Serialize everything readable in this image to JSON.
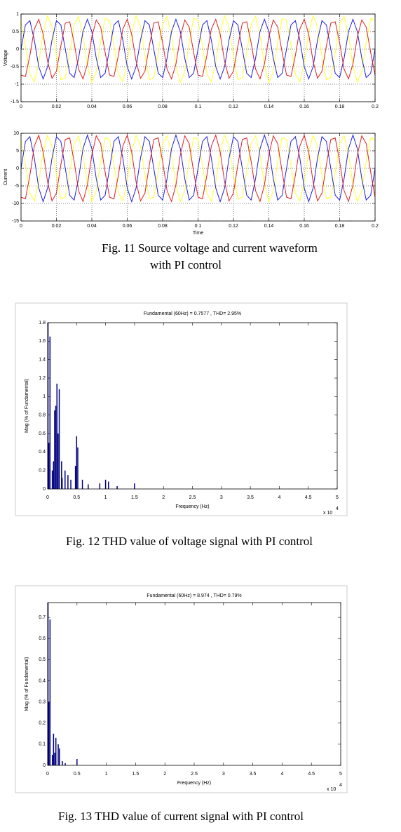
{
  "chart_data": [
    {
      "type": "line",
      "y_label": "Voltage",
      "grid": true,
      "x": [
        0,
        0.0025,
        0.005,
        0.0075,
        0.01,
        0.0125,
        0.015,
        0.0175,
        0.02,
        0.0225,
        0.025,
        0.0275,
        0.03,
        0.0325,
        0.035,
        0.0375,
        0.04,
        0.0425,
        0.045,
        0.0475,
        0.05,
        0.0525,
        0.055,
        0.0575,
        0.06,
        0.0625,
        0.065,
        0.0675,
        0.07,
        0.0725,
        0.075,
        0.0775,
        0.08,
        0.0825,
        0.085,
        0.0875,
        0.09,
        0.0925,
        0.095,
        0.0975,
        0.1,
        0.1025,
        0.105,
        0.1075,
        0.11,
        0.1125,
        0.115,
        0.1175,
        0.12,
        0.1225,
        0.125,
        0.1275,
        0.13,
        0.1325,
        0.135,
        0.1375,
        0.14,
        0.1425,
        0.145,
        0.1475,
        0.15,
        0.1525,
        0.155,
        0.1575,
        0.16,
        0.1625,
        0.165,
        0.1675,
        0.17,
        0.1725,
        0.175,
        0.1775,
        0.18,
        0.1825,
        0.185,
        0.1875,
        0.19,
        0.1925,
        0.195,
        0.1975,
        0.2
      ],
      "xlim": [
        0,
        0.2
      ],
      "xticks": [
        0,
        0.02,
        0.04,
        0.06,
        0.08,
        0.1,
        0.12,
        0.14,
        0.16,
        0.18,
        0.2
      ],
      "ylim": [
        -1.5,
        1
      ],
      "yticks": [
        -1.5,
        -1,
        -0.5,
        0,
        0.5,
        1
      ],
      "series": [
        {
          "color": "#ffff33",
          "values": [
            0.82,
            0.1,
            -0.71,
            -0.93,
            -0.39,
            0.48,
            0.95,
            0.64,
            -0.2,
            -0.87,
            -0.82,
            -0.1,
            0.71,
            0.93,
            0.39,
            -0.48,
            -0.95,
            -0.64,
            0.2,
            0.87,
            0.82,
            0.1,
            -0.71,
            -0.93,
            -0.39,
            0.48,
            0.95,
            0.64,
            -0.2,
            -0.87,
            -0.82,
            -0.1,
            0.71,
            0.93,
            0.39,
            -0.48,
            -0.95,
            -0.64,
            0.2,
            0.87,
            0.82,
            0.1,
            -0.71,
            -0.93,
            -0.39,
            0.48,
            0.95,
            0.64,
            -0.2,
            -0.87,
            -0.82,
            -0.1,
            0.71,
            0.93,
            0.39,
            -0.48,
            -0.95,
            -0.64,
            0.2,
            0.87,
            0.82,
            0.1,
            -0.71,
            -0.93,
            -0.39,
            0.48,
            0.95,
            0.64,
            -0.2,
            -0.87,
            -0.82,
            -0.1,
            0.71,
            0.93,
            0.39,
            -0.48,
            -0.95,
            -0.64,
            0.2,
            0.87,
            0.82
          ]
        },
        {
          "color": "#2020e0",
          "values": [
            0,
            0.69,
            0.81,
            0.26,
            -0.5,
            -0.85,
            -0.5,
            0.26,
            0.81,
            0.69,
            0,
            -0.69,
            -0.81,
            -0.26,
            0.5,
            0.85,
            0.5,
            -0.26,
            -0.81,
            -0.69,
            0,
            0.69,
            0.81,
            0.26,
            -0.5,
            -0.85,
            -0.5,
            0.26,
            0.81,
            0.69,
            0,
            -0.69,
            -0.81,
            -0.26,
            0.5,
            0.85,
            0.5,
            -0.26,
            -0.81,
            -0.69,
            0,
            0.69,
            0.81,
            0.26,
            -0.5,
            -0.85,
            -0.5,
            0.26,
            0.81,
            0.69,
            0,
            -0.69,
            -0.81,
            -0.26,
            0.5,
            0.85,
            0.5,
            -0.26,
            -0.81,
            -0.69,
            0,
            0.69,
            0.81,
            0.26,
            -0.5,
            -0.85,
            -0.5,
            0.26,
            0.81,
            0.69,
            0,
            -0.69,
            -0.81,
            -0.26,
            0.5,
            0.85,
            0.5,
            -0.26,
            -0.81,
            -0.69,
            0
          ]
        },
        {
          "color": "#e02020",
          "values": [
            -0.74,
            -0.78,
            -0.18,
            0.57,
            0.85,
            0.43,
            -0.35,
            -0.83,
            -0.63,
            0.09,
            0.74,
            0.78,
            0.18,
            -0.57,
            -0.85,
            -0.43,
            0.35,
            0.83,
            0.63,
            -0.09,
            -0.74,
            -0.78,
            -0.18,
            0.57,
            0.85,
            0.43,
            -0.35,
            -0.83,
            -0.63,
            0.09,
            0.74,
            0.78,
            0.18,
            -0.57,
            -0.85,
            -0.43,
            0.35,
            0.83,
            0.63,
            -0.09,
            -0.74,
            -0.78,
            -0.18,
            0.57,
            0.85,
            0.43,
            -0.35,
            -0.83,
            -0.63,
            0.09,
            0.74,
            0.78,
            0.18,
            -0.57,
            -0.85,
            -0.43,
            0.35,
            0.83,
            0.63,
            -0.09,
            -0.74,
            -0.78,
            -0.18,
            0.57,
            0.85,
            0.43,
            -0.35,
            -0.83,
            -0.63,
            0.09,
            0.74,
            0.78,
            0.18,
            -0.57,
            -0.85,
            -0.43,
            0.35,
            0.83,
            0.63,
            -0.09,
            -0.74
          ]
        }
      ]
    },
    {
      "type": "line",
      "y_label": "Current",
      "x_label": "Time",
      "grid": true,
      "x": [
        0,
        0.0025,
        0.005,
        0.0075,
        0.01,
        0.0125,
        0.015,
        0.0175,
        0.02,
        0.0225,
        0.025,
        0.0275,
        0.03,
        0.0325,
        0.035,
        0.0375,
        0.04,
        0.0425,
        0.045,
        0.0475,
        0.05,
        0.0525,
        0.055,
        0.0575,
        0.06,
        0.0625,
        0.065,
        0.0675,
        0.07,
        0.0725,
        0.075,
        0.0775,
        0.08,
        0.0825,
        0.085,
        0.0875,
        0.09,
        0.0925,
        0.095,
        0.0975,
        0.1,
        0.1025,
        0.105,
        0.1075,
        0.11,
        0.1125,
        0.115,
        0.1175,
        0.12,
        0.1225,
        0.125,
        0.1275,
        0.13,
        0.1325,
        0.135,
        0.1375,
        0.14,
        0.1425,
        0.145,
        0.1475,
        0.15,
        0.1525,
        0.155,
        0.1575,
        0.16,
        0.1625,
        0.165,
        0.1675,
        0.17,
        0.1725,
        0.175,
        0.1775,
        0.18,
        0.1825,
        0.185,
        0.1875,
        0.19,
        0.1925,
        0.195,
        0.1975,
        0.2
      ],
      "xlim": [
        0,
        0.2
      ],
      "xticks": [
        0,
        0.02,
        0.04,
        0.06,
        0.08,
        0.1,
        0.12,
        0.14,
        0.16,
        0.18,
        0.2
      ],
      "ylim": [
        -15,
        10
      ],
      "yticks": [
        -15,
        -10,
        -5,
        0,
        5,
        10
      ],
      "series": [
        {
          "color": "#ffff33",
          "values": [
            8.23,
            1,
            -7.06,
            -9.29,
            -3.87,
            4.75,
            9.45,
            6.36,
            -1.98,
            -8.68,
            -8.23,
            -1,
            7.06,
            9.29,
            3.87,
            -4.75,
            -9.45,
            -6.36,
            1.98,
            8.68,
            8.23,
            1,
            -7.06,
            -9.29,
            -3.87,
            4.75,
            9.45,
            6.36,
            -1.98,
            -8.68,
            -8.23,
            -1,
            7.06,
            9.29,
            3.87,
            -4.75,
            -9.45,
            -6.36,
            1.98,
            8.68,
            8.23,
            1,
            -7.06,
            -9.29,
            -3.87,
            4.75,
            9.45,
            6.36,
            -1.98,
            -8.68,
            -8.23,
            -1,
            7.06,
            9.29,
            3.87,
            -4.75,
            -9.45,
            -6.36,
            1.98,
            8.68,
            8.23,
            1,
            -7.06,
            -9.29,
            -3.87,
            4.75,
            9.45,
            6.36,
            -1.98,
            -8.68,
            -8.23,
            -1,
            7.06,
            9.29,
            3.87,
            -4.75,
            -9.45,
            -6.36,
            1.98,
            8.68,
            8.23
          ]
        },
        {
          "color": "#2020e0",
          "values": [
            0,
            7.69,
            9.03,
            2.94,
            -5.59,
            -9.5,
            -5.59,
            2.94,
            9.03,
            7.69,
            0,
            -7.69,
            -9.03,
            -2.94,
            5.59,
            9.5,
            5.59,
            -2.94,
            -9.03,
            -7.69,
            0,
            7.69,
            9.03,
            2.94,
            -5.59,
            -9.5,
            -5.59,
            2.94,
            9.03,
            7.69,
            0,
            -7.69,
            -9.03,
            -2.94,
            5.59,
            9.5,
            5.59,
            -2.94,
            -9.03,
            -7.69,
            0,
            7.69,
            9.03,
            2.94,
            -5.59,
            -9.5,
            -5.59,
            2.94,
            9.03,
            7.69,
            0,
            -7.69,
            -9.03,
            -2.94,
            5.59,
            9.5,
            5.59,
            -2.94,
            -9.03,
            -7.69,
            0,
            7.69,
            9.03,
            2.94,
            -5.59,
            -9.5,
            -5.59,
            2.94,
            9.03,
            7.69,
            0,
            -7.69,
            -9.03,
            -2.94,
            5.59,
            9.5,
            5.59,
            -2.94,
            -9.03,
            -7.69,
            0
          ]
        },
        {
          "color": "#e02020",
          "values": [
            -8.23,
            -8.68,
            -1.98,
            6.36,
            9.45,
            4.75,
            -3.87,
            -9.29,
            -7.06,
            1,
            8.23,
            8.68,
            1.98,
            -6.36,
            -9.45,
            -4.75,
            3.87,
            9.29,
            7.06,
            -1,
            -8.23,
            -8.68,
            -1.98,
            6.36,
            9.45,
            4.75,
            -3.87,
            -9.29,
            -7.06,
            1,
            8.23,
            8.68,
            1.98,
            -6.36,
            -9.45,
            -4.75,
            3.87,
            9.29,
            7.06,
            -1,
            -8.23,
            -8.68,
            -1.98,
            6.36,
            9.45,
            4.75,
            -3.87,
            -9.29,
            -7.06,
            1,
            8.23,
            8.68,
            1.98,
            -6.36,
            -9.45,
            -4.75,
            3.87,
            9.29,
            7.06,
            -1,
            -8.23,
            -8.68,
            -1.98,
            6.36,
            9.45,
            4.75,
            -3.87,
            -9.29,
            -7.06,
            1,
            8.23,
            8.68,
            1.98,
            -6.36,
            -9.45,
            -4.75,
            3.87,
            9.29,
            7.06,
            -1,
            -8.23
          ]
        }
      ]
    },
    {
      "type": "bar",
      "title": "Fundamental (60Hz) = 0.7577 , THD= 2.95%",
      "y_label": "Mag (% of Fundamental)",
      "x_label": "Frequency (Hz)",
      "x_multiplier": "x 10",
      "x_multiplier_exponent": "4",
      "color": "#000080",
      "x": [
        0.006,
        0.02,
        0.04,
        0.08,
        0.1,
        0.12,
        0.14,
        0.16,
        0.18,
        0.2,
        0.24,
        0.25,
        0.3,
        0.35,
        0.4,
        0.48,
        0.5,
        0.52,
        0.6,
        0.7,
        0.9,
        1,
        1.05,
        1.2,
        1.5
      ],
      "values": [
        1.8,
        0.5,
        1.65,
        0.2,
        0.3,
        0.85,
        0.9,
        1.14,
        0.6,
        1.08,
        0.3,
        0.12,
        0.2,
        0.15,
        0.1,
        0.25,
        0.57,
        0.45,
        0.1,
        0.05,
        0.06,
        0.1,
        0.08,
        0.03,
        0.06
      ],
      "xlim": [
        0,
        5
      ],
      "xticks": [
        0,
        0.5,
        1,
        1.5,
        2,
        2.5,
        3,
        3.5,
        4,
        4.5,
        5
      ],
      "ylim": [
        0,
        1.8
      ],
      "yticks": [
        0,
        0.2,
        0.4,
        0.6,
        0.8,
        1,
        1.2,
        1.4,
        1.6,
        1.8
      ]
    },
    {
      "type": "bar",
      "title": "Fundamental (60Hz) = 8.974 , THD= 0.79%",
      "y_label": "Mag (% of Fundamental)",
      "x_label": "Frequency (Hz)",
      "x_multiplier": "x 10",
      "x_multiplier_exponent": "4",
      "color": "#000080",
      "x": [
        0.006,
        0.02,
        0.04,
        0.08,
        0.1,
        0.12,
        0.14,
        0.18,
        0.2,
        0.25,
        0.3,
        0.5
      ],
      "values": [
        0.77,
        0.3,
        0.69,
        0.05,
        0.15,
        0.06,
        0.13,
        0.1,
        0.08,
        0.02,
        0.01,
        0.03
      ],
      "xlim": [
        0,
        5
      ],
      "xticks": [
        0,
        0.5,
        1,
        1.5,
        2,
        2.5,
        3,
        3.5,
        4,
        4.5,
        5
      ],
      "ylim": [
        0,
        0.77
      ],
      "yticks": [
        0,
        0.1,
        0.2,
        0.3,
        0.4,
        0.5,
        0.6,
        0.7
      ]
    }
  ],
  "captions": [
    "Fig. 11 Source voltage and current waveform",
    "with PI control",
    "Fig. 12 THD value of voltage signal with PI control",
    "Fig. 13 THD value of current signal with PI control"
  ]
}
